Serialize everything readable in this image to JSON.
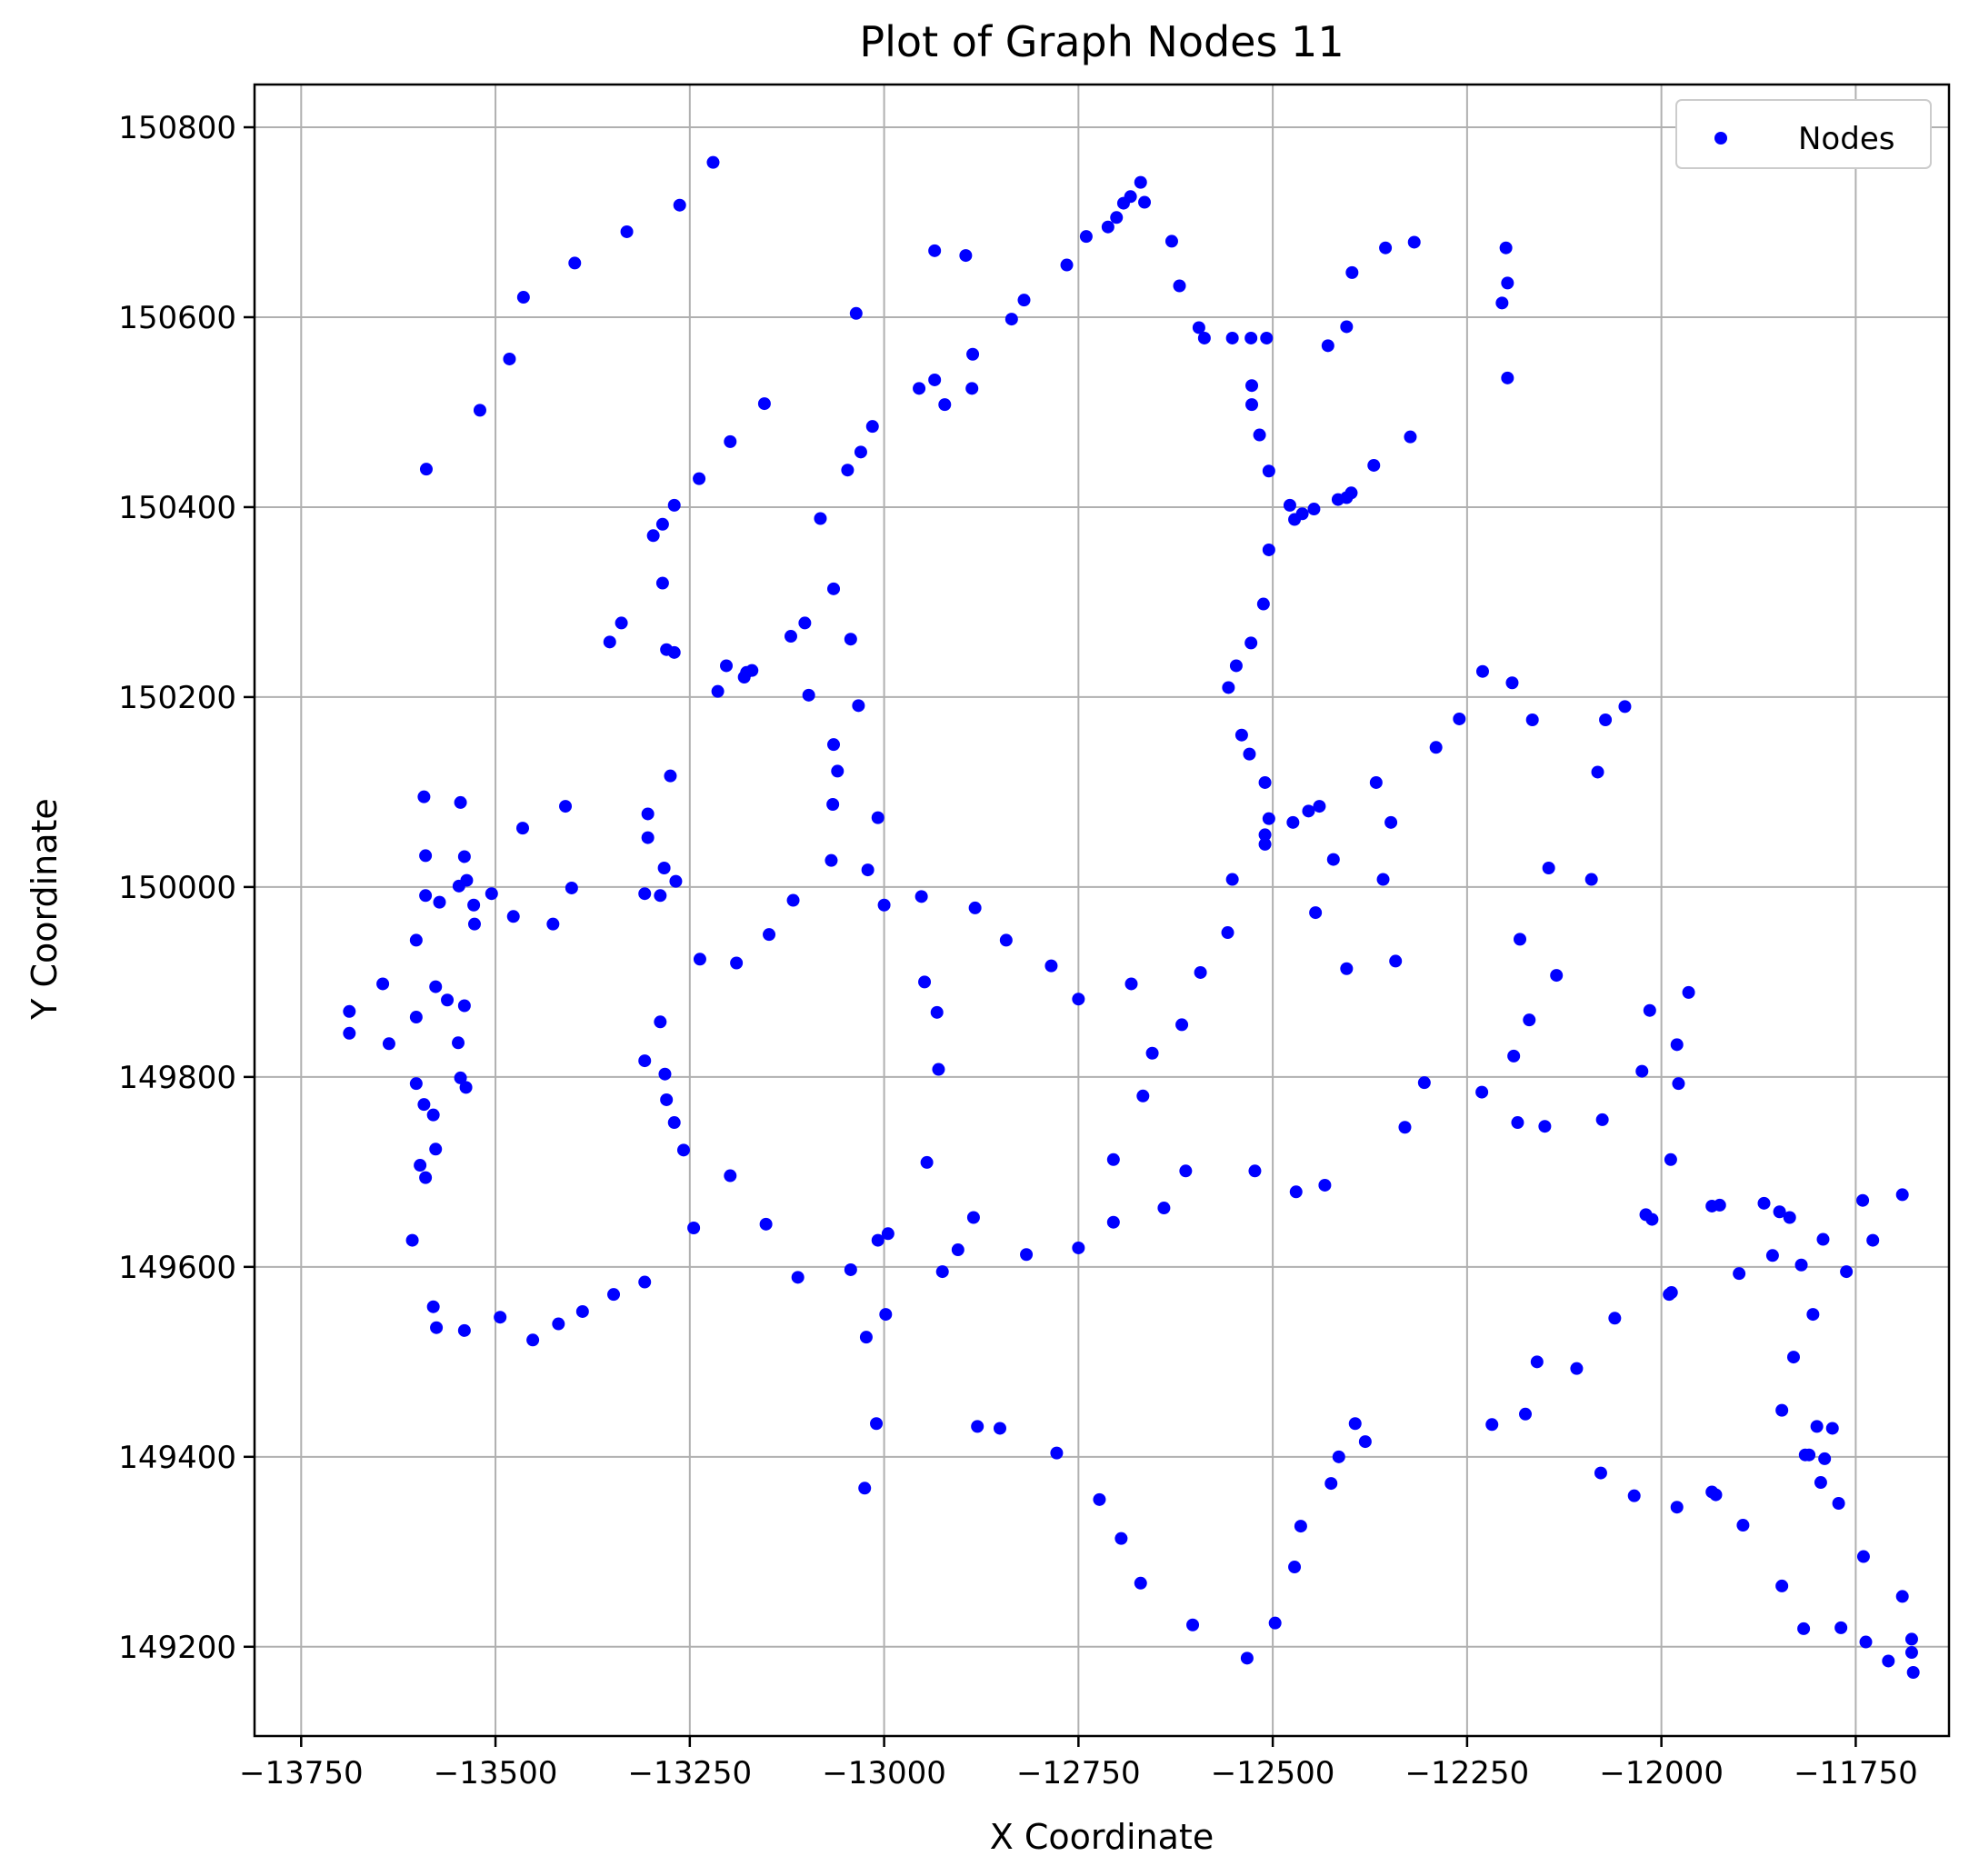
{
  "chart_data": {
    "type": "scatter",
    "title": "Plot of Graph Nodes 11",
    "xlabel": "X Coordinate",
    "ylabel": "Y Coordinate",
    "xlim": [
      -13810,
      -11630
    ],
    "ylim": [
      149106,
      150845
    ],
    "xticks": [
      -13750,
      -13500,
      -13250,
      -13000,
      -12750,
      -12500,
      -12250,
      -12000,
      -11750
    ],
    "yticks": [
      149200,
      149400,
      149600,
      149800,
      150000,
      150200,
      150400,
      150600,
      150800
    ],
    "grid": true,
    "legend_position": "top-right",
    "colors": {
      "nodes": "#0000ff"
    },
    "series": [
      {
        "name": "Nodes",
        "points": [
          [
            -13220,
            150763
          ],
          [
            -13263,
            150718
          ],
          [
            -13331,
            150690
          ],
          [
            -13398,
            150657
          ],
          [
            -13464,
            150621
          ],
          [
            -13482,
            150556
          ],
          [
            -13520,
            150502
          ],
          [
            -13589,
            150440
          ],
          [
            -12935,
            150670
          ],
          [
            -12895,
            150665
          ],
          [
            -12820,
            150618
          ],
          [
            -12836,
            150598
          ],
          [
            -12765,
            150655
          ],
          [
            -12740,
            150685
          ],
          [
            -12712,
            150695
          ],
          [
            -12701,
            150705
          ],
          [
            -12692,
            150720
          ],
          [
            -12683,
            150727
          ],
          [
            -12670,
            150742
          ],
          [
            -12665,
            150721
          ],
          [
            -12630,
            150680
          ],
          [
            -12620,
            150633
          ],
          [
            -12595,
            150589
          ],
          [
            -12588,
            150578
          ],
          [
            -12552,
            150578
          ],
          [
            -12528,
            150578
          ],
          [
            -12508,
            150578
          ],
          [
            -12527,
            150528
          ],
          [
            -12527,
            150508
          ],
          [
            -12517,
            150476
          ],
          [
            -12505,
            150438
          ],
          [
            -12478,
            150402
          ],
          [
            -12472,
            150387
          ],
          [
            -12462,
            150393
          ],
          [
            -12447,
            150398
          ],
          [
            -12416,
            150408
          ],
          [
            -12405,
            150410
          ],
          [
            -12399,
            150415
          ],
          [
            -12370,
            150444
          ],
          [
            -12323,
            150474
          ],
          [
            -12429,
            150570
          ],
          [
            -12405,
            150590
          ],
          [
            -12398,
            150647
          ],
          [
            -12355,
            150673
          ],
          [
            -12318,
            150679
          ],
          [
            -12200,
            150673
          ],
          [
            -12198,
            150636
          ],
          [
            -12205,
            150615
          ],
          [
            -12198,
            150536
          ],
          [
            -12955,
            150525
          ],
          [
            -12935,
            150534
          ],
          [
            -12922,
            150508
          ],
          [
            -12887,
            150525
          ],
          [
            -12886,
            150561
          ],
          [
            -13036,
            150604
          ],
          [
            -13015,
            150485
          ],
          [
            -13030,
            150458
          ],
          [
            -13047,
            150439
          ],
          [
            -13082,
            150388
          ],
          [
            -13065,
            150314
          ],
          [
            -13043,
            150261
          ],
          [
            -13033,
            150191
          ],
          [
            -13102,
            150278
          ],
          [
            -13120,
            150264
          ],
          [
            -13097,
            150202
          ],
          [
            -13065,
            150150
          ],
          [
            -13060,
            150122
          ],
          [
            -13066,
            150087
          ],
          [
            -13068,
            150028
          ],
          [
            -13021,
            150018
          ],
          [
            -13008,
            150073
          ],
          [
            -13000,
            149981
          ],
          [
            -13154,
            150509
          ],
          [
            -13198,
            150469
          ],
          [
            -13238,
            150430
          ],
          [
            -13270,
            150402
          ],
          [
            -13285,
            150382
          ],
          [
            -13297,
            150370
          ],
          [
            -13285,
            150320
          ],
          [
            -13280,
            150250
          ],
          [
            -13270,
            150247
          ],
          [
            -13338,
            150278
          ],
          [
            -13353,
            150258
          ],
          [
            -13203,
            150233
          ],
          [
            -13180,
            150221
          ],
          [
            -13177,
            150226
          ],
          [
            -13170,
            150228
          ],
          [
            -13214,
            150206
          ],
          [
            -13275,
            150117
          ],
          [
            -13304,
            150077
          ],
          [
            -13304,
            150052
          ],
          [
            -13283,
            150020
          ],
          [
            -13268,
            150006
          ],
          [
            -13308,
            149993
          ],
          [
            -13288,
            149991
          ],
          [
            -13402,
            149999
          ],
          [
            -13410,
            150085
          ],
          [
            -13465,
            150062
          ],
          [
            -13505,
            149993
          ],
          [
            -13540,
            150032
          ],
          [
            -13537,
            150007
          ],
          [
            -13528,
            149981
          ],
          [
            -13527,
            149961
          ],
          [
            -13477,
            149969
          ],
          [
            -13426,
            149961
          ],
          [
            -13592,
            150095
          ],
          [
            -13545,
            150089
          ],
          [
            -13590,
            150033
          ],
          [
            -13590,
            149991
          ],
          [
            -13572,
            149984
          ],
          [
            -13547,
            150001
          ],
          [
            -13602,
            149944
          ],
          [
            -13645,
            149898
          ],
          [
            -13577,
            149895
          ],
          [
            -13562,
            149881
          ],
          [
            -13540,
            149875
          ],
          [
            -13602,
            149863
          ],
          [
            -13688,
            149869
          ],
          [
            -13688,
            149846
          ],
          [
            -13637,
            149835
          ],
          [
            -13548,
            149836
          ],
          [
            -13545,
            149799
          ],
          [
            -13538,
            149789
          ],
          [
            -13602,
            149793
          ],
          [
            -13592,
            149771
          ],
          [
            -13580,
            149760
          ],
          [
            -13577,
            149724
          ],
          [
            -13597,
            149707
          ],
          [
            -13590,
            149694
          ],
          [
            -13607,
            149628
          ],
          [
            -13580,
            149558
          ],
          [
            -13576,
            149536
          ],
          [
            -13540,
            149533
          ],
          [
            -13494,
            149547
          ],
          [
            -13452,
            149523
          ],
          [
            -13419,
            149540
          ],
          [
            -13388,
            149553
          ],
          [
            -13348,
            149571
          ],
          [
            -13308,
            149584
          ],
          [
            -13288,
            149858
          ],
          [
            -13308,
            149817
          ],
          [
            -13282,
            149803
          ],
          [
            -13280,
            149776
          ],
          [
            -13270,
            149752
          ],
          [
            -13258,
            149723
          ],
          [
            -13198,
            149696
          ],
          [
            -13237,
            149924
          ],
          [
            -13190,
            149920
          ],
          [
            -13148,
            149950
          ],
          [
            -13117,
            149986
          ],
          [
            -13245,
            149641
          ],
          [
            -13152,
            149645
          ],
          [
            -13111,
            149589
          ],
          [
            -13043,
            149597
          ],
          [
            -13023,
            149526
          ],
          [
            -13010,
            149435
          ],
          [
            -13025,
            149367
          ],
          [
            -12998,
            149550
          ],
          [
            -13008,
            149628
          ],
          [
            -12995,
            149635
          ],
          [
            -12945,
            149710
          ],
          [
            -12948,
            149900
          ],
          [
            -12930,
            149808
          ],
          [
            -12932,
            149868
          ],
          [
            -12952,
            149990
          ],
          [
            -12925,
            149595
          ],
          [
            -12905,
            149618
          ],
          [
            -12883,
            149978
          ],
          [
            -12843,
            149944
          ],
          [
            -12885,
            149652
          ],
          [
            -12880,
            149432
          ],
          [
            -12851,
            149430
          ],
          [
            -12785,
            149917
          ],
          [
            -12778,
            149404
          ],
          [
            -12817,
            149613
          ],
          [
            -12750,
            149620
          ],
          [
            -12750,
            149882
          ],
          [
            -12723,
            149355
          ],
          [
            -12695,
            149314
          ],
          [
            -12705,
            149713
          ],
          [
            -12705,
            149647
          ],
          [
            -12682,
            149898
          ],
          [
            -12670,
            149267
          ],
          [
            -12667,
            149780
          ],
          [
            -12655,
            149825
          ],
          [
            -12640,
            149662
          ],
          [
            -12617,
            149855
          ],
          [
            -12612,
            149701
          ],
          [
            -12603,
            149223
          ],
          [
            -12593,
            149910
          ],
          [
            -12558,
            149952
          ],
          [
            -12552,
            150008
          ],
          [
            -12540,
            150160
          ],
          [
            -12530,
            150140
          ],
          [
            -12547,
            150233
          ],
          [
            -12557,
            150210
          ],
          [
            -12528,
            150257
          ],
          [
            -12512,
            150298
          ],
          [
            -12505,
            150355
          ],
          [
            -12510,
            150110
          ],
          [
            -12505,
            150072
          ],
          [
            -12510,
            150055
          ],
          [
            -12510,
            150045
          ],
          [
            -12533,
            149188
          ],
          [
            -12523,
            149701
          ],
          [
            -12497,
            149225
          ],
          [
            -12472,
            149284
          ],
          [
            -12464,
            149327
          ],
          [
            -12470,
            149679
          ],
          [
            -12445,
            149973
          ],
          [
            -12422,
            150029
          ],
          [
            -12454,
            150080
          ],
          [
            -12474,
            150068
          ],
          [
            -12440,
            150085
          ],
          [
            -12433,
            149686
          ],
          [
            -12425,
            149372
          ],
          [
            -12405,
            149914
          ],
          [
            -12394,
            149435
          ],
          [
            -12381,
            149416
          ],
          [
            -12367,
            150110
          ],
          [
            -12358,
            150008
          ],
          [
            -12348,
            150068
          ],
          [
            -12342,
            149922
          ],
          [
            -12330,
            149747
          ],
          [
            -12305,
            149794
          ],
          [
            -12290,
            150147
          ],
          [
            -12260,
            150177
          ],
          [
            -12230,
            150227
          ],
          [
            -12231,
            149784
          ],
          [
            -12218,
            149434
          ],
          [
            -12192,
            150215
          ],
          [
            -12182,
            149945
          ],
          [
            -12190,
            149822
          ],
          [
            -12170,
            149860
          ],
          [
            -12166,
            150176
          ],
          [
            -12185,
            149752
          ],
          [
            -12150,
            149748
          ],
          [
            -12145,
            150020
          ],
          [
            -12135,
            149907
          ],
          [
            -12160,
            149500
          ],
          [
            -12175,
            149445
          ],
          [
            -12109,
            149493
          ],
          [
            -12090,
            150008
          ],
          [
            -12082,
            150121
          ],
          [
            -12072,
            150176
          ],
          [
            -12076,
            149755
          ],
          [
            -12060,
            149546
          ],
          [
            -12047,
            150190
          ],
          [
            -12035,
            149359
          ],
          [
            -12025,
            149806
          ],
          [
            -12020,
            149655
          ],
          [
            -12012,
            149650
          ],
          [
            -12015,
            149870
          ],
          [
            -11988,
            149713
          ],
          [
            -11990,
            149571
          ],
          [
            -11987,
            149573
          ],
          [
            -11980,
            149834
          ],
          [
            -11978,
            149793
          ],
          [
            -11965,
            149889
          ],
          [
            -11935,
            149664
          ],
          [
            -11925,
            149665
          ],
          [
            -11935,
            149363
          ],
          [
            -11930,
            149360
          ],
          [
            -11900,
            149593
          ],
          [
            -11895,
            149328
          ],
          [
            -11868,
            149667
          ],
          [
            -11857,
            149612
          ],
          [
            -11848,
            149658
          ],
          [
            -11835,
            149652
          ],
          [
            -11830,
            149505
          ],
          [
            -11820,
            149602
          ],
          [
            -11815,
            149402
          ],
          [
            -11810,
            149402
          ],
          [
            -11805,
            149550
          ],
          [
            -11800,
            149432
          ],
          [
            -11792,
            149629
          ],
          [
            -11795,
            149373
          ],
          [
            -11790,
            149398
          ],
          [
            -11780,
            149430
          ],
          [
            -11772,
            149351
          ],
          [
            -11769,
            149220
          ],
          [
            -11762,
            149595
          ],
          [
            -11741,
            149670
          ],
          [
            -11740,
            149295
          ],
          [
            -11737,
            149205
          ],
          [
            -11728,
            149628
          ],
          [
            -11708,
            149185
          ],
          [
            -11690,
            149676
          ],
          [
            -11690,
            149253
          ],
          [
            -11678,
            149208
          ],
          [
            -11678,
            149194
          ],
          [
            -11676,
            149173
          ],
          [
            -11845,
            149449
          ],
          [
            -11845,
            149264
          ],
          [
            -11817,
            149219
          ],
          [
            -11980,
            149347
          ],
          [
            -12078,
            149383
          ],
          [
            -12415,
            149400
          ]
        ]
      }
    ]
  }
}
